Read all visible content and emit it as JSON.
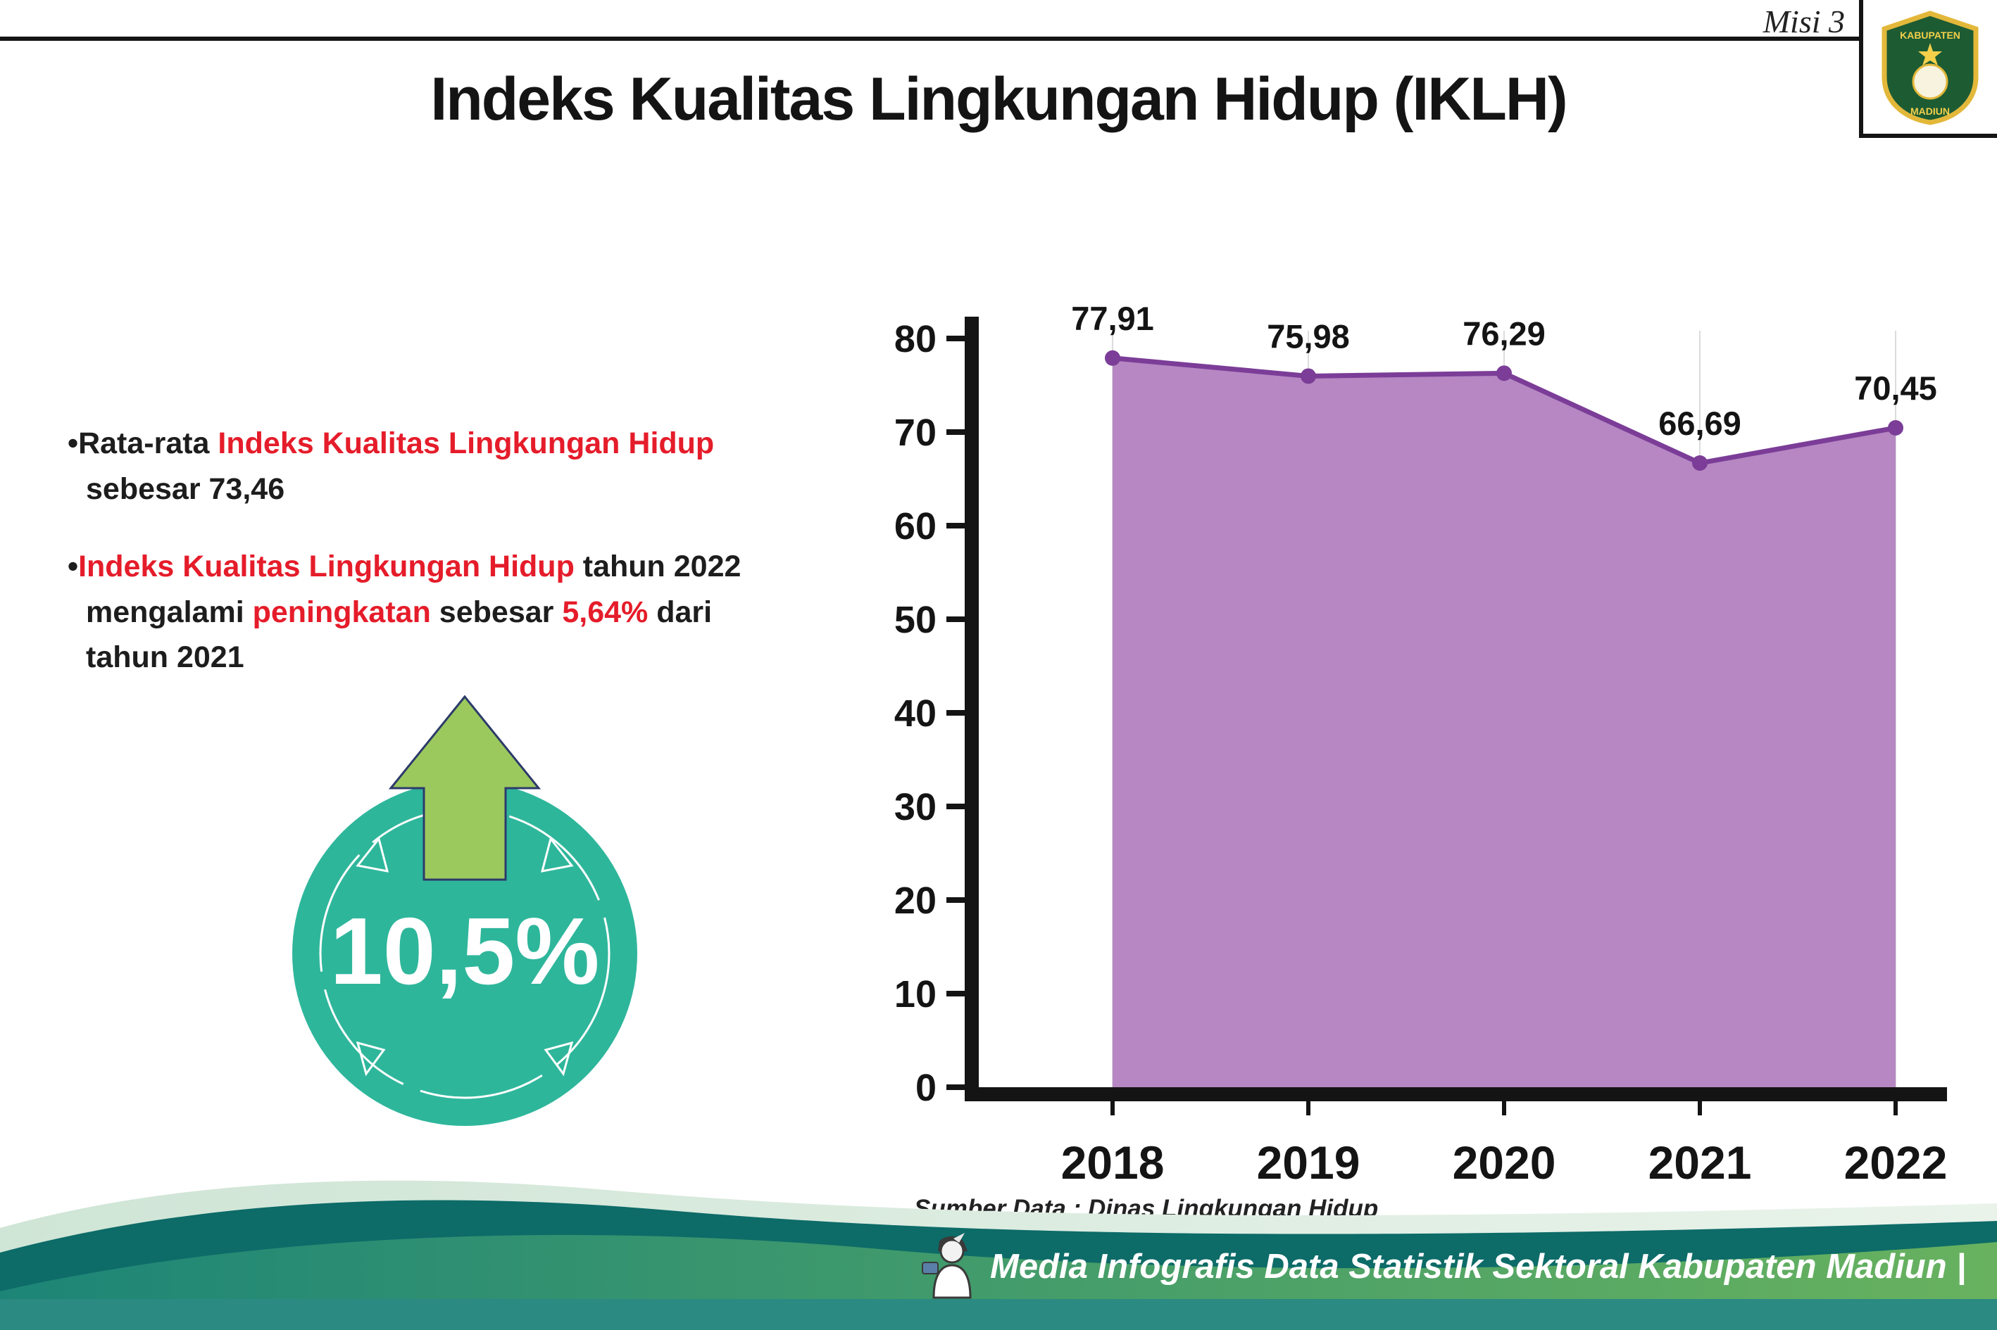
{
  "header": {
    "misi_label": "Misi 3",
    "title": "Indeks Kualitas Lingkungan Hidup (IKLH)",
    "logo": {
      "text_top": "KABUPATEN",
      "text_bottom": "MADIUN"
    }
  },
  "bullet1": {
    "dot": "•",
    "black1": "Rata-rata ",
    "red1": "Indeks Kualitas Lingkungan Hidup",
    "line2": "sebesar 73,46"
  },
  "bullet2": {
    "dot": "•",
    "red1": "Indeks Kualitas Lingkungan Hidup",
    "black1": " tahun 2022",
    "black2": "mengalami ",
    "red2": "peningkatan",
    "black3": " sebesar ",
    "red3": "5,64%",
    "black4": " dari",
    "line3": "tahun 2021"
  },
  "badge": {
    "value": "10,5%"
  },
  "chart_data": {
    "type": "area",
    "title": "",
    "xlabel": "",
    "ylabel": "",
    "categories": [
      "2018",
      "2019",
      "2020",
      "2021",
      "2022"
    ],
    "values": [
      77.91,
      75.98,
      76.29,
      66.69,
      70.45
    ],
    "value_labels": [
      "77,91",
      "75,98",
      "76,29",
      "66,69",
      "70,45"
    ],
    "ylim": [
      0,
      80
    ],
    "yticks": [
      0,
      10,
      20,
      30,
      40,
      50,
      60,
      70,
      80
    ],
    "grid": "vertical-light",
    "fill_color": "#b687c3",
    "line_color": "#7b3d97",
    "source_caption": "Sumber Data : Dinas Lingkungan Hidup"
  },
  "footer": {
    "credit": "Media Infografis Data Statistik Sektoral Kabupaten Madiun |"
  },
  "colors": {
    "accent_red": "#e51c2a",
    "badge_teal": "#2eb69b",
    "arrow_green": "#9cc95d",
    "footer_dark_teal": "#0d6b68",
    "footer_green_left": "#1d8577",
    "footer_green_right": "#68b25f",
    "footer_band": "#2b8a82",
    "axis_black": "#141414"
  }
}
